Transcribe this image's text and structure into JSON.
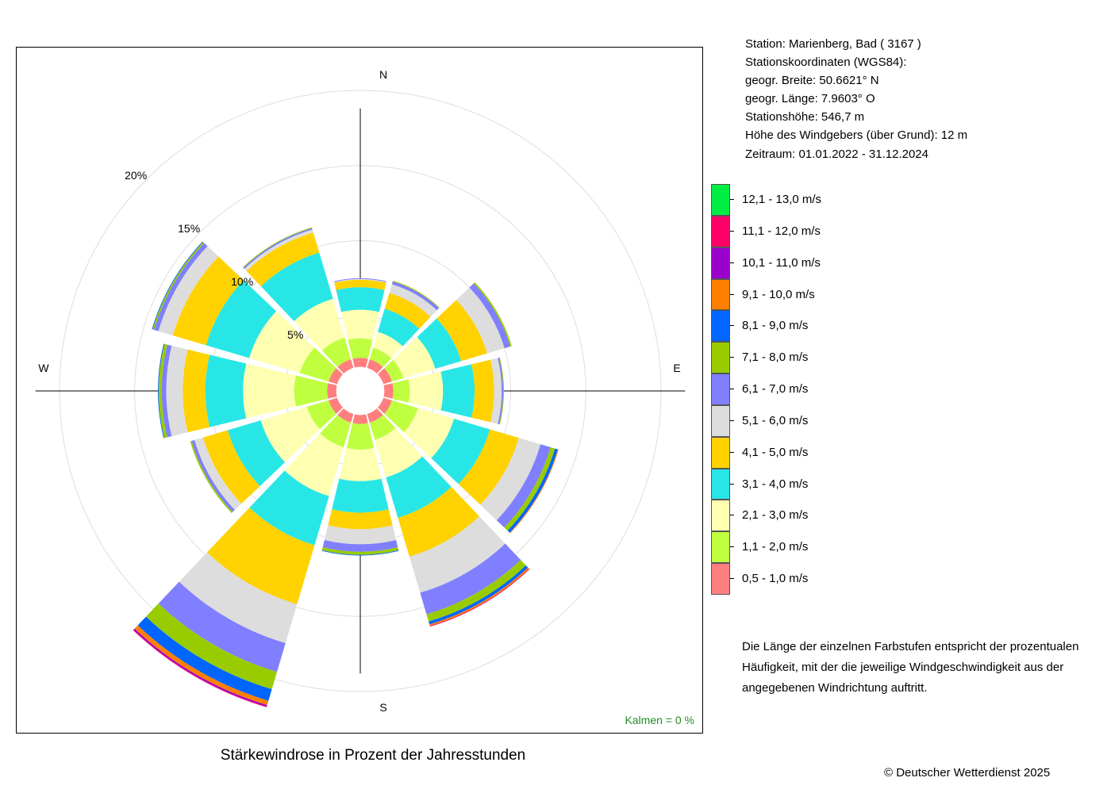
{
  "station": {
    "station_label": "Station:  Marienberg, Bad  ( 3167 )",
    "coords_label": "Stationskoordinaten (WGS84):",
    "lat_label": "geogr. Breite: 50.6621° N",
    "lon_label": "geogr. Länge:   7.9603° O",
    "height_label": "Stationshöhe: 546,7 m",
    "sensor_label": "Höhe des Windgebers (über Grund): 12 m",
    "period_label": "Zeitraum: 01.01.2022 - 31.12.2024"
  },
  "note": "Die Länge der einzelnen Farbstufen entspricht der prozentualen Häufigkeit, mit der die jeweilige Windgeschwindigkeit aus der angegebenen Windrichtung auftritt.",
  "copyright": "© Deutscher Wetterdienst  2025",
  "chart_data": {
    "type": "wind-rose",
    "title": "Stärkewindrose in Prozent der Jahresstunden",
    "calm_label": "Kalmen  =  0 %",
    "direction_labels": {
      "N": "N",
      "E": "E",
      "S": "S",
      "W": "W"
    },
    "radial_ticks": [
      5,
      10,
      15,
      20
    ],
    "radial_tick_labels": [
      "5%",
      "10%",
      "15%",
      "20%"
    ],
    "radial_max": 22.9,
    "directions_deg": [
      0,
      30,
      60,
      90,
      120,
      150,
      180,
      210,
      240,
      270,
      300,
      330
    ],
    "bins": [
      {
        "label": "0,5 - 1,0 m/s",
        "color": "#ff7f7f"
      },
      {
        "label": "1,1 - 2,0 m/s",
        "color": "#bfff3f"
      },
      {
        "label": "2,1 - 3,0 m/s",
        "color": "#ffffb2"
      },
      {
        "label": "3,1 - 4,0 m/s",
        "color": "#29e6e6"
      },
      {
        "label": "4,1 - 5,0 m/s",
        "color": "#ffd200"
      },
      {
        "label": "5,1 - 6,0 m/s",
        "color": "#dddddd"
      },
      {
        "label": "6,1 - 7,0 m/s",
        "color": "#7f7fff"
      },
      {
        "label": "7,1 - 8,0 m/s",
        "color": "#99cc00"
      },
      {
        "label": "8,1 - 9,0 m/s",
        "color": "#0066ff"
      },
      {
        "label": "9,1 - 10,0 m/s",
        "color": "#ff8000"
      },
      {
        "label": "10,1 - 11,0 m/s",
        "color": "#9900cc"
      },
      {
        "label": "11,1 - 12,0 m/s",
        "color": "#ff0066"
      },
      {
        "label": "12,1 - 13,0 m/s",
        "color": "#00ee44"
      }
    ],
    "cumulative_percent": [
      [
        2.2,
        3.5,
        5.4,
        6.9,
        7.4,
        7.45,
        7.5,
        7.5,
        7.5,
        7.5,
        7.5,
        7.5,
        7.5
      ],
      [
        2.2,
        3.0,
        4.1,
        5.7,
        6.8,
        7.4,
        7.6,
        7.65,
        7.65,
        7.65,
        7.65,
        7.65,
        7.65
      ],
      [
        2.2,
        3.0,
        5.2,
        7.0,
        8.8,
        10.0,
        10.4,
        10.5,
        10.5,
        10.5,
        10.5,
        10.5,
        10.5
      ],
      [
        2.2,
        3.3,
        5.5,
        7.6,
        8.9,
        9.4,
        9.5,
        9.55,
        9.55,
        9.55,
        9.55,
        9.55,
        9.55
      ],
      [
        2.2,
        4.0,
        6.5,
        9.0,
        11.0,
        12.5,
        13.2,
        13.5,
        13.7,
        13.75,
        13.75,
        13.75,
        13.75
      ],
      [
        2.2,
        3.4,
        6.0,
        8.8,
        11.5,
        14.0,
        15.5,
        16.0,
        16.2,
        16.3,
        16.3,
        16.35,
        16.35
      ],
      [
        2.2,
        3.9,
        6.0,
        8.1,
        9.2,
        10.2,
        10.7,
        10.9,
        10.95,
        10.95,
        10.95,
        10.95,
        10.95
      ],
      [
        2.2,
        3.9,
        7.3,
        10.7,
        14.8,
        17.5,
        19.5,
        20.7,
        21.5,
        21.8,
        21.9,
        21.95,
        21.95
      ],
      [
        2.2,
        3.7,
        6.9,
        9.2,
        10.9,
        11.5,
        11.7,
        11.8,
        11.8,
        11.8,
        11.8,
        11.8,
        11.8
      ],
      [
        2.2,
        4.4,
        7.8,
        10.3,
        11.8,
        12.9,
        13.2,
        13.4,
        13.45,
        13.45,
        13.45,
        13.45,
        13.45
      ],
      [
        2.2,
        4.2,
        7.7,
        10.7,
        13.0,
        14.0,
        14.3,
        14.4,
        14.45,
        14.45,
        14.45,
        14.45,
        14.45
      ],
      [
        2.2,
        3.7,
        6.4,
        9.6,
        11.0,
        11.2,
        11.3,
        11.35,
        11.35,
        11.35,
        11.35,
        11.35,
        11.35
      ]
    ]
  }
}
